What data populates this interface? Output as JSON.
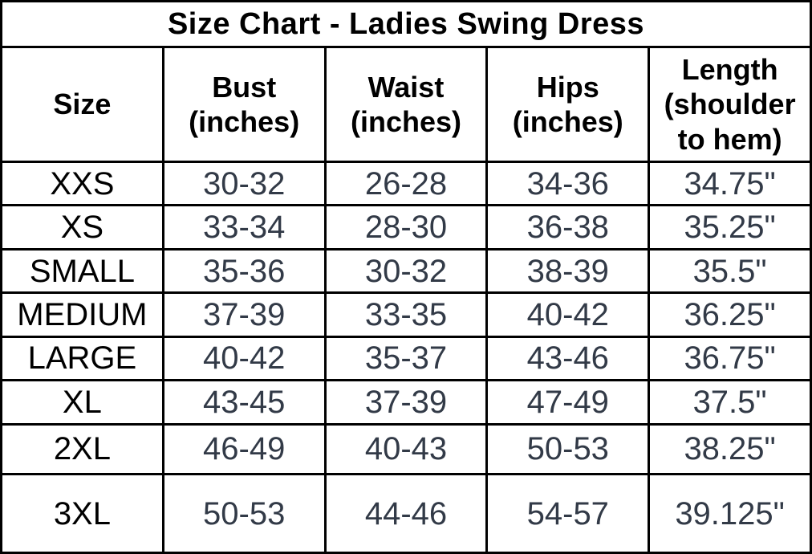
{
  "chart_data": {
    "type": "table",
    "title": "Size Chart - Ladies Swing Dress",
    "columns": [
      "Size",
      "Bust (inches)",
      "Waist (inches)",
      "Hips (inches)",
      "Length (shoulder to hem)"
    ],
    "header_display": [
      "Size",
      "Bust\n(inches)",
      "Waist\n(inches)",
      "Hips\n(inches)",
      "Length\n(shoulder\nto hem)"
    ],
    "rows": [
      [
        "XXS",
        "30-32",
        "26-28",
        "34-36",
        "34.75\""
      ],
      [
        "XS",
        "33-34",
        "28-30",
        "36-38",
        "35.25\""
      ],
      [
        "SMALL",
        "35-36",
        "30-32",
        "38-39",
        "35.5\""
      ],
      [
        "MEDIUM",
        "37-39",
        "33-35",
        "40-42",
        "36.25\""
      ],
      [
        "LARGE",
        "40-42",
        "35-37",
        "43-46",
        "36.75\""
      ],
      [
        "XL",
        "43-45",
        "37-39",
        "47-49",
        "37.5\""
      ],
      [
        "2XL",
        "46-49",
        "40-43",
        "50-53",
        "38.25\""
      ],
      [
        "3XL",
        "50-53",
        "44-46",
        "54-57",
        "39.125\""
      ]
    ],
    "layout": {
      "grid": true,
      "header_bold": true
    }
  },
  "colors": {
    "border": "#000000",
    "heading_text": "#000000",
    "value_text": "#323a47",
    "background": "#ffffff"
  }
}
